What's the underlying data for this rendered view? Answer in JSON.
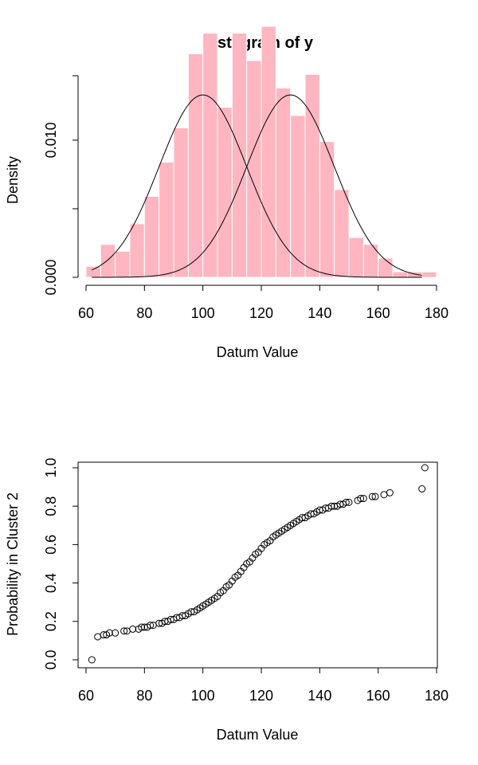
{
  "colors": {
    "bar_fill": "#FFB6C1",
    "bar_stroke": "#ffffff",
    "curve": "#000000",
    "point": "#000000",
    "axis": "#000000"
  },
  "chart_data": [
    {
      "type": "bar",
      "title": "Histogram of y",
      "xlabel": "Datum Value",
      "ylabel": "Density",
      "xlim": [
        60,
        180
      ],
      "ylim": [
        0,
        0.0147
      ],
      "x_ticks": [
        60,
        80,
        100,
        120,
        140,
        160,
        180
      ],
      "y_ticks": [
        0,
        0.005,
        0.01
      ],
      "y_tick_labels": [
        "0.000",
        "",
        "0.010"
      ],
      "bin_width": 5,
      "bins": [
        {
          "x0": 60,
          "x1": 65,
          "density": 0.0008
        },
        {
          "x0": 65,
          "x1": 70,
          "density": 0.0024
        },
        {
          "x0": 70,
          "x1": 75,
          "density": 0.0019
        },
        {
          "x0": 75,
          "x1": 80,
          "density": 0.0039
        },
        {
          "x0": 80,
          "x1": 85,
          "density": 0.0059
        },
        {
          "x0": 85,
          "x1": 90,
          "density": 0.0084
        },
        {
          "x0": 90,
          "x1": 95,
          "density": 0.0109
        },
        {
          "x0": 95,
          "x1": 100,
          "density": 0.0163
        },
        {
          "x0": 100,
          "x1": 105,
          "density": 0.0178
        },
        {
          "x0": 105,
          "x1": 110,
          "density": 0.0124
        },
        {
          "x0": 110,
          "x1": 115,
          "density": 0.0178
        },
        {
          "x0": 115,
          "x1": 120,
          "density": 0.0158
        },
        {
          "x0": 120,
          "x1": 125,
          "density": 0.0183
        },
        {
          "x0": 125,
          "x1": 130,
          "density": 0.0138
        },
        {
          "x0": 130,
          "x1": 135,
          "density": 0.0118
        },
        {
          "x0": 135,
          "x1": 140,
          "density": 0.0148
        },
        {
          "x0": 140,
          "x1": 145,
          "density": 0.0099
        },
        {
          "x0": 145,
          "x1": 150,
          "density": 0.0064
        },
        {
          "x0": 150,
          "x1": 155,
          "density": 0.0029
        },
        {
          "x0": 155,
          "x1": 160,
          "density": 0.0024
        },
        {
          "x0": 160,
          "x1": 165,
          "density": 0.0014
        },
        {
          "x0": 165,
          "x1": 170,
          "density": 0.0004
        },
        {
          "x0": 170,
          "x1": 175,
          "density": 0.0004
        },
        {
          "x0": 175,
          "x1": 180,
          "density": 0.0004
        }
      ],
      "curves": [
        {
          "mean": 100,
          "sd": 15,
          "weight": 0.5,
          "x_range": [
            62,
            175
          ]
        },
        {
          "mean": 130,
          "sd": 15,
          "weight": 0.5,
          "x_range": [
            62,
            175
          ]
        }
      ]
    },
    {
      "type": "scatter",
      "xlabel": "Datum Value",
      "ylabel": "Probability in Cluster 2",
      "xlim": [
        60,
        180
      ],
      "ylim": [
        0,
        1
      ],
      "x_ticks": [
        60,
        80,
        100,
        120,
        140,
        160,
        180
      ],
      "y_ticks": [
        0,
        0.2,
        0.4,
        0.6,
        0.8,
        1.0
      ],
      "y_tick_labels": [
        "0.0",
        "0.2",
        "0.4",
        "0.6",
        "0.8",
        "1.0"
      ],
      "points": [
        [
          62,
          0.0
        ],
        [
          64,
          0.12
        ],
        [
          66,
          0.13
        ],
        [
          67,
          0.13
        ],
        [
          68,
          0.14
        ],
        [
          70,
          0.14
        ],
        [
          73,
          0.15
        ],
        [
          74,
          0.15
        ],
        [
          76,
          0.16
        ],
        [
          78,
          0.16
        ],
        [
          79,
          0.17
        ],
        [
          80,
          0.17
        ],
        [
          81,
          0.17
        ],
        [
          82,
          0.18
        ],
        [
          83,
          0.18
        ],
        [
          85,
          0.19
        ],
        [
          86,
          0.19
        ],
        [
          87,
          0.2
        ],
        [
          88,
          0.2
        ],
        [
          89,
          0.21
        ],
        [
          90,
          0.21
        ],
        [
          91,
          0.22
        ],
        [
          92,
          0.22
        ],
        [
          93,
          0.23
        ],
        [
          94,
          0.23
        ],
        [
          95,
          0.24
        ],
        [
          96,
          0.25
        ],
        [
          97,
          0.25
        ],
        [
          98,
          0.26
        ],
        [
          99,
          0.27
        ],
        [
          100,
          0.28
        ],
        [
          101,
          0.29
        ],
        [
          102,
          0.3
        ],
        [
          103,
          0.31
        ],
        [
          104,
          0.32
        ],
        [
          105,
          0.33
        ],
        [
          106,
          0.35
        ],
        [
          107,
          0.36
        ],
        [
          108,
          0.38
        ],
        [
          109,
          0.39
        ],
        [
          110,
          0.41
        ],
        [
          111,
          0.43
        ],
        [
          112,
          0.44
        ],
        [
          113,
          0.46
        ],
        [
          114,
          0.48
        ],
        [
          115,
          0.5
        ],
        [
          116,
          0.51
        ],
        [
          117,
          0.53
        ],
        [
          118,
          0.55
        ],
        [
          119,
          0.56
        ],
        [
          120,
          0.58
        ],
        [
          121,
          0.6
        ],
        [
          122,
          0.61
        ],
        [
          123,
          0.62
        ],
        [
          124,
          0.64
        ],
        [
          125,
          0.65
        ],
        [
          126,
          0.66
        ],
        [
          127,
          0.67
        ],
        [
          128,
          0.68
        ],
        [
          129,
          0.69
        ],
        [
          130,
          0.7
        ],
        [
          131,
          0.71
        ],
        [
          132,
          0.72
        ],
        [
          133,
          0.73
        ],
        [
          134,
          0.74
        ],
        [
          135,
          0.74
        ],
        [
          136,
          0.75
        ],
        [
          137,
          0.76
        ],
        [
          138,
          0.76
        ],
        [
          139,
          0.77
        ],
        [
          140,
          0.78
        ],
        [
          141,
          0.78
        ],
        [
          142,
          0.79
        ],
        [
          143,
          0.79
        ],
        [
          144,
          0.8
        ],
        [
          145,
          0.8
        ],
        [
          146,
          0.8
        ],
        [
          147,
          0.81
        ],
        [
          148,
          0.81
        ],
        [
          149,
          0.82
        ],
        [
          150,
          0.82
        ],
        [
          153,
          0.83
        ],
        [
          154,
          0.84
        ],
        [
          155,
          0.84
        ],
        [
          158,
          0.85
        ],
        [
          159,
          0.85
        ],
        [
          162,
          0.86
        ],
        [
          164,
          0.87
        ],
        [
          175,
          0.89
        ],
        [
          176,
          1.0
        ]
      ]
    }
  ]
}
